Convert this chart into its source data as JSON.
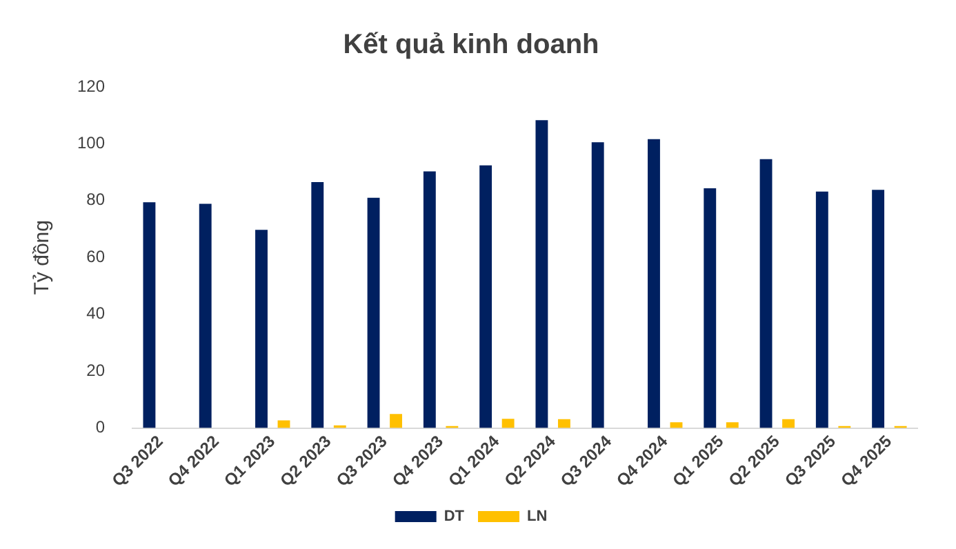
{
  "chart_data": {
    "type": "bar",
    "title": "Kết quả kinh doanh",
    "ylabel": "Tỷ đồng",
    "categories": [
      "Q3 2022",
      "Q4 2022",
      "Q1 2023",
      "Q2 2023",
      "Q3 2023",
      "Q4 2023",
      "Q1 2024",
      "Q2 2024",
      "Q3 2024",
      "Q4 2024",
      "Q1 2025",
      "Q2 2025",
      "Q3 2025",
      "Q4 2025"
    ],
    "series": [
      {
        "name": "DT",
        "color": "#002060",
        "values": [
          79.4,
          78.9,
          69.7,
          86.5,
          81.0,
          90.3,
          92.4,
          108.3,
          100.5,
          101.6,
          84.3,
          94.6,
          83.2,
          83.8
        ]
      },
      {
        "name": "LN",
        "color": "#ffc000",
        "values": [
          0,
          0,
          2.7,
          0.9,
          4.9,
          0.7,
          3.2,
          3.1,
          0,
          2.0,
          2.0,
          3.1,
          0.7,
          0.7
        ]
      }
    ],
    "ylim": [
      0,
      120
    ],
    "yticks": [
      0,
      20,
      40,
      60,
      80,
      100,
      120
    ],
    "grid": false,
    "legend": "bottom"
  }
}
